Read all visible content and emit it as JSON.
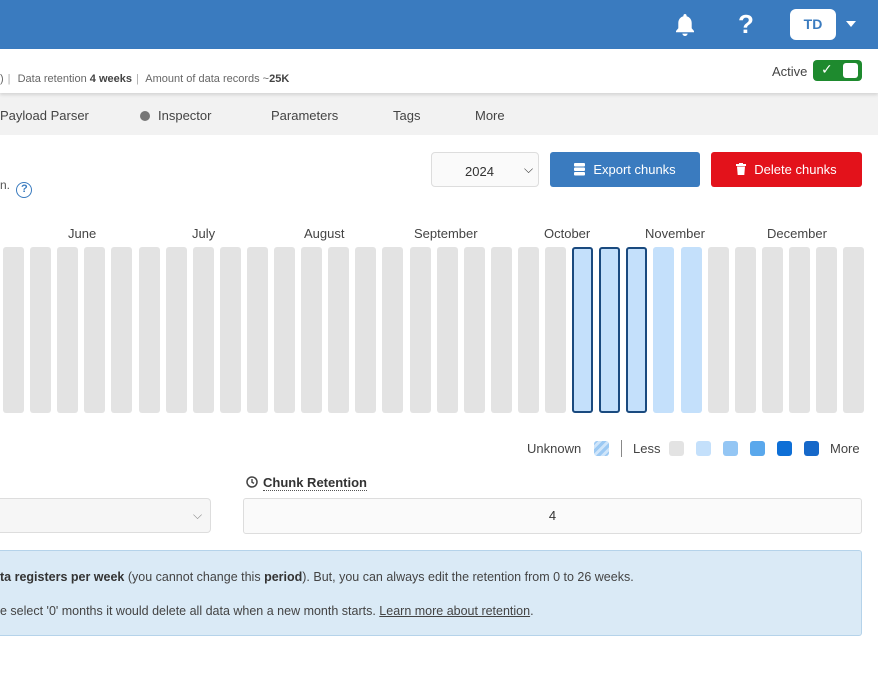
{
  "header": {
    "bell_icon": "bell-icon",
    "help_label": "?",
    "avatar_initials": "TD"
  },
  "info": {
    "meta_prefix": ")",
    "retention_label": "Data retention",
    "retention_value": "4 weeks",
    "records_label": "Amount of data records ~",
    "records_value": "25K",
    "active_label": "Active",
    "toggle_check": "✓",
    "status_color": "#1e8a2e"
  },
  "tabs": [
    {
      "label": "Payload Parser"
    },
    {
      "label": "Inspector"
    },
    {
      "label": "Parameters"
    },
    {
      "label": "Tags"
    },
    {
      "label": "More"
    }
  ],
  "controls": {
    "help_fragment": "n.",
    "help_icon": "?",
    "year": "2024",
    "export_label": "Export chunks",
    "delete_label": "Delete chunks",
    "export_color": "#3a7bbf",
    "delete_color": "#e3121b"
  },
  "calendar": {
    "months": [
      "June",
      "July",
      "August",
      "September",
      "October",
      "November",
      "December"
    ],
    "weeks": [
      "empty",
      "empty",
      "empty",
      "empty",
      "empty",
      "empty",
      "empty",
      "empty",
      "empty",
      "empty",
      "empty",
      "empty",
      "empty",
      "empty",
      "empty",
      "empty",
      "empty",
      "empty",
      "empty",
      "empty",
      "empty",
      "selected",
      "selected",
      "selected",
      "light",
      "light",
      "empty",
      "empty",
      "empty",
      "empty",
      "empty",
      "empty"
    ]
  },
  "legend": {
    "unknown_label": "Unknown",
    "less_label": "Less",
    "more_label": "More",
    "scale_colors": [
      "#e3e3e3",
      "#c4e0fb",
      "#94c6f4",
      "#5aa8ec",
      "#0e6fd6",
      "#1668c9"
    ]
  },
  "retention": {
    "label": "Chunk Retention",
    "value": "4"
  },
  "notice": {
    "l1_bold1": "ta registers per week",
    "l1_text1": " (you cannot change this ",
    "l1_bold2": "period",
    "l1_text2": "). But, you can always edit the retention from 0 to 26 weeks.",
    "l2_text": "e select '0' months it would delete all data when a new month starts. ",
    "l2_link": "Learn more about retention",
    "l2_end": "."
  }
}
